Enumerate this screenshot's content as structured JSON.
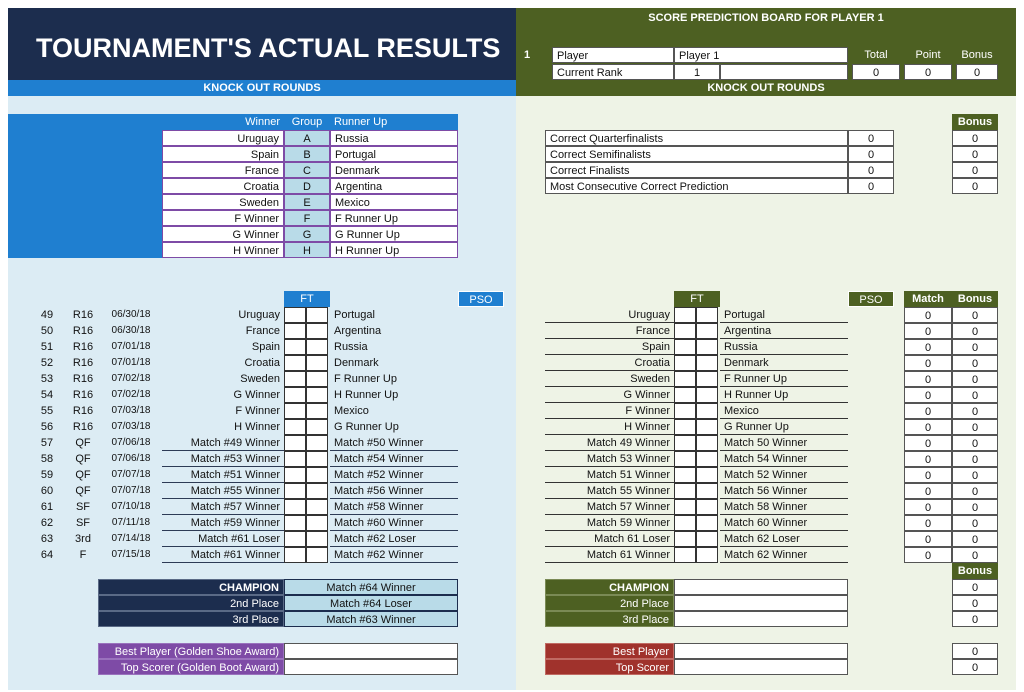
{
  "left": {
    "title": "TOURNAMENT'S ACTUAL RESULTS",
    "knockout": "KNOCK OUT ROUNDS",
    "group_headers": {
      "winner": "Winner",
      "group": "Group",
      "runner": "Runner Up"
    },
    "groups": [
      {
        "winner": "Uruguay",
        "group": "A",
        "runner": "Russia"
      },
      {
        "winner": "Spain",
        "group": "B",
        "runner": "Portugal"
      },
      {
        "winner": "France",
        "group": "C",
        "runner": "Denmark"
      },
      {
        "winner": "Croatia",
        "group": "D",
        "runner": "Argentina"
      },
      {
        "winner": "Sweden",
        "group": "E",
        "runner": "Mexico"
      },
      {
        "winner": "F Winner",
        "group": "F",
        "runner": "F Runner Up"
      },
      {
        "winner": "G Winner",
        "group": "G",
        "runner": "G Runner Up"
      },
      {
        "winner": "H Winner",
        "group": "H",
        "runner": "H Runner Up"
      }
    ],
    "ft": "FT",
    "pso": "PSO",
    "matches": [
      {
        "no": "49",
        "round": "R16",
        "date": "06/30/18",
        "home": "Uruguay",
        "away": "Portugal"
      },
      {
        "no": "50",
        "round": "R16",
        "date": "06/30/18",
        "home": "France",
        "away": "Argentina"
      },
      {
        "no": "51",
        "round": "R16",
        "date": "07/01/18",
        "home": "Spain",
        "away": "Russia"
      },
      {
        "no": "52",
        "round": "R16",
        "date": "07/01/18",
        "home": "Croatia",
        "away": "Denmark"
      },
      {
        "no": "53",
        "round": "R16",
        "date": "07/02/18",
        "home": "Sweden",
        "away": "F Runner Up"
      },
      {
        "no": "54",
        "round": "R16",
        "date": "07/02/18",
        "home": "G Winner",
        "away": "H Runner Up"
      },
      {
        "no": "55",
        "round": "R16",
        "date": "07/03/18",
        "home": "F Winner",
        "away": "Mexico"
      },
      {
        "no": "56",
        "round": "R16",
        "date": "07/03/18",
        "home": "H Winner",
        "away": "G Runner Up"
      },
      {
        "no": "57",
        "round": "QF",
        "date": "07/06/18",
        "home": "Match #49 Winner",
        "away": "Match #50 Winner"
      },
      {
        "no": "58",
        "round": "QF",
        "date": "07/06/18",
        "home": "Match #53 Winner",
        "away": "Match #54 Winner"
      },
      {
        "no": "59",
        "round": "QF",
        "date": "07/07/18",
        "home": "Match #51 Winner",
        "away": "Match #52 Winner"
      },
      {
        "no": "60",
        "round": "QF",
        "date": "07/07/18",
        "home": "Match #55 Winner",
        "away": "Match #56 Winner"
      },
      {
        "no": "61",
        "round": "SF",
        "date": "07/10/18",
        "home": "Match #57 Winner",
        "away": "Match #58 Winner"
      },
      {
        "no": "62",
        "round": "SF",
        "date": "07/11/18",
        "home": "Match #59 Winner",
        "away": "Match #60 Winner"
      },
      {
        "no": "63",
        "round": "3rd",
        "date": "07/14/18",
        "home": "Match #61 Loser",
        "away": "Match #62 Loser"
      },
      {
        "no": "64",
        "round": "F",
        "date": "07/15/18",
        "home": "Match #61 Winner",
        "away": "Match #62 Winner"
      }
    ],
    "placings": [
      {
        "label": "CHAMPION",
        "value": "Match #64 Winner"
      },
      {
        "label": "2nd Place",
        "value": "Match #64 Loser"
      },
      {
        "label": "3rd Place",
        "value": "Match #63 Winner"
      }
    ],
    "awards": [
      {
        "label": "Best Player (Golden Shoe Award)",
        "value": ""
      },
      {
        "label": "Top Scorer (Golden Boot Award)",
        "value": ""
      }
    ]
  },
  "right": {
    "title": "SCORE PREDICTION BOARD FOR PLAYER 1",
    "player_no": "1",
    "player_label": "Player",
    "player_value": "Player 1",
    "rank_label": "Current Rank",
    "rank_value": "1",
    "total_label": "Total",
    "point_label": "Point",
    "bonus_label": "Bonus",
    "total": "0",
    "point": "0",
    "bonus": "0",
    "knockout": "KNOCK OUT ROUNDS",
    "bonus_header": "Bonus",
    "predictions": [
      {
        "label": "Correct Quarterfinalists",
        "value": "0",
        "bonus": "0"
      },
      {
        "label": "Correct Semifinalists",
        "value": "0",
        "bonus": "0"
      },
      {
        "label": "Correct Finalists",
        "value": "0",
        "bonus": "0"
      },
      {
        "label": "Most Consecutive Correct Prediction",
        "value": "0",
        "bonus": "0"
      }
    ],
    "ft": "FT",
    "pso": "PSO",
    "match_header": "Match",
    "matches": [
      {
        "home": "Uruguay",
        "away": "Portugal",
        "match": "0",
        "bonus": "0"
      },
      {
        "home": "France",
        "away": "Argentina",
        "match": "0",
        "bonus": "0"
      },
      {
        "home": "Spain",
        "away": "Russia",
        "match": "0",
        "bonus": "0"
      },
      {
        "home": "Croatia",
        "away": "Denmark",
        "match": "0",
        "bonus": "0"
      },
      {
        "home": "Sweden",
        "away": "F Runner Up",
        "match": "0",
        "bonus": "0"
      },
      {
        "home": "G Winner",
        "away": "H Runner Up",
        "match": "0",
        "bonus": "0"
      },
      {
        "home": "F Winner",
        "away": "Mexico",
        "match": "0",
        "bonus": "0"
      },
      {
        "home": "H Winner",
        "away": "G Runner Up",
        "match": "0",
        "bonus": "0"
      },
      {
        "home": "Match 49 Winner",
        "away": "Match 50 Winner",
        "match": "0",
        "bonus": "0"
      },
      {
        "home": "Match 53 Winner",
        "away": "Match 54 Winner",
        "match": "0",
        "bonus": "0"
      },
      {
        "home": "Match 51 Winner",
        "away": "Match 52 Winner",
        "match": "0",
        "bonus": "0"
      },
      {
        "home": "Match 55 Winner",
        "away": "Match 56 Winner",
        "match": "0",
        "bonus": "0"
      },
      {
        "home": "Match 57 Winner",
        "away": "Match 58 Winner",
        "match": "0",
        "bonus": "0"
      },
      {
        "home": "Match 59 Winner",
        "away": "Match 60 Winner",
        "match": "0",
        "bonus": "0"
      },
      {
        "home": "Match 61 Loser",
        "away": "Match 62 Loser",
        "match": "0",
        "bonus": "0"
      },
      {
        "home": "Match 61 Winner",
        "away": "Match 62 Winner",
        "match": "0",
        "bonus": "0"
      }
    ],
    "placings": [
      {
        "label": "CHAMPION",
        "value": "",
        "bonus": "0"
      },
      {
        "label": "2nd Place",
        "value": "",
        "bonus": "0"
      },
      {
        "label": "3rd Place",
        "value": "",
        "bonus": "0"
      }
    ],
    "awards": [
      {
        "label": "Best Player",
        "value": "",
        "bonus": "0"
      },
      {
        "label": "Top Scorer",
        "value": "",
        "bonus": "0"
      }
    ]
  },
  "colors": {
    "navy": "#1c2d4e",
    "blue": "#1f7fd0",
    "olive": "#4d6022",
    "purple": "#7e4ba6",
    "red": "#a0322c",
    "light_blue": "#b9dbe8"
  }
}
